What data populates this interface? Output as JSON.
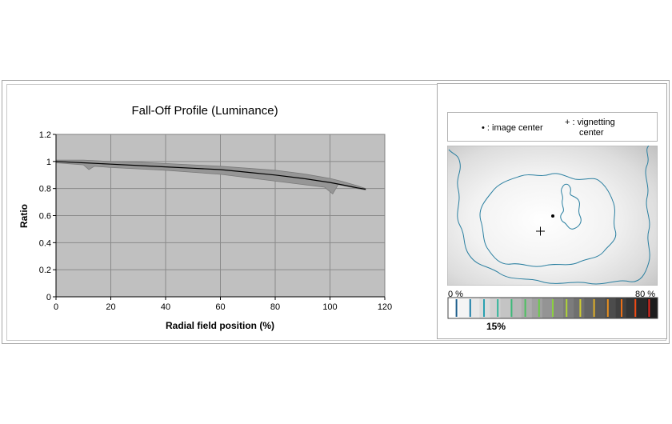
{
  "chart_data": {
    "type": "area",
    "title": "Fall-Off Profile (Luminance)",
    "xlabel": "Radial field position (%)",
    "ylabel": "Ratio",
    "xlim": [
      0,
      120
    ],
    "ylim": [
      0,
      1.2
    ],
    "x_ticks": [
      "0",
      "20",
      "40",
      "60",
      "80",
      "100",
      "120"
    ],
    "y_ticks": [
      "0",
      "0.2",
      "0.4",
      "0.6",
      "0.8",
      "1",
      "1.2"
    ],
    "grid": true,
    "plot_background": "#c0c0c0",
    "band_color": "#969696",
    "line_color": "#000000",
    "series": [
      {
        "role": "mean",
        "x": [
          0,
          10,
          20,
          30,
          40,
          50,
          60,
          70,
          80,
          90,
          100,
          105,
          110,
          113
        ],
        "y": [
          1.0,
          0.99,
          0.98,
          0.97,
          0.96,
          0.95,
          0.94,
          0.92,
          0.9,
          0.875,
          0.845,
          0.825,
          0.805,
          0.795
        ]
      },
      {
        "role": "band-upper",
        "x": [
          0,
          10,
          20,
          30,
          40,
          50,
          60,
          70,
          80,
          90,
          100,
          105,
          110,
          113
        ],
        "y": [
          1.01,
          1.01,
          1.0,
          0.995,
          0.985,
          0.975,
          0.965,
          0.95,
          0.935,
          0.91,
          0.875,
          0.85,
          0.82,
          0.8
        ]
      },
      {
        "role": "band-lower",
        "x": [
          0,
          10,
          12,
          14,
          20,
          30,
          40,
          50,
          60,
          70,
          80,
          90,
          98,
          101,
          103,
          110,
          113
        ],
        "y": [
          0.99,
          0.975,
          0.94,
          0.965,
          0.955,
          0.945,
          0.935,
          0.92,
          0.905,
          0.88,
          0.855,
          0.83,
          0.81,
          0.76,
          0.83,
          0.8,
          0.79
        ]
      }
    ]
  },
  "legend": {
    "image_center": "• : image center",
    "vignetting_center_line1": "+ : vignetting",
    "vignetting_center_line2": "center"
  },
  "scale": {
    "min_label": "0 %",
    "max_label": "80 %",
    "selected_label": "15%",
    "swatches": [
      "#ffffff",
      "#f4f4f4",
      "#e8e8e8",
      "#dcdcdc",
      "#d0d0d0",
      "#c4c4c4",
      "#b8b8b8",
      "#acacac",
      "#a0a0a0",
      "#949494",
      "#888888",
      "#7c7c7c",
      "#707070",
      "#646464",
      "#585858",
      "#4c4c4c",
      "#404040",
      "#343434",
      "#282828",
      "#1c1c1c"
    ],
    "tick_colors": [
      "#1a5c8a",
      "#1d7fa8",
      "#2aa0b0",
      "#2fb59a",
      "#3cb878",
      "#4cc060",
      "#6acb4a",
      "#8cd040",
      "#b0d438",
      "#d0cc30",
      "#e0b028",
      "#e89020",
      "#ec7018",
      "#f04a14",
      "#e82820"
    ],
    "selected_index": 1
  },
  "map": {
    "contour_color": "#2a7fa0",
    "background": "#e8e8e8"
  }
}
